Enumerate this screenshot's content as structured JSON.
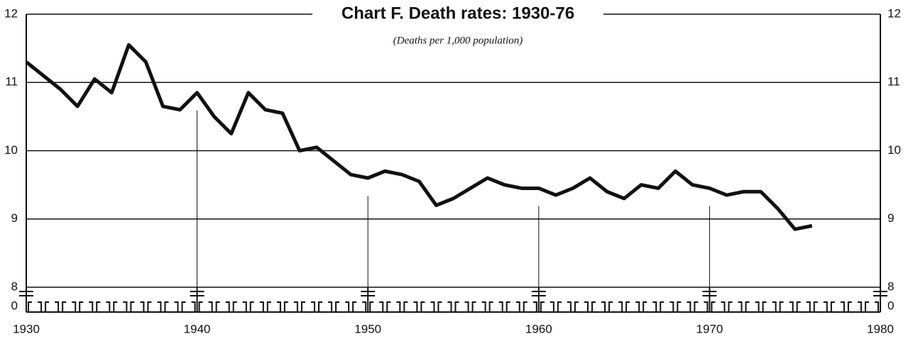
{
  "chart_data": {
    "type": "line",
    "title": "Chart F. Death rates: 1930-76",
    "subtitle": "(Deaths per 1,000 population)",
    "x": [
      1930,
      1931,
      1932,
      1933,
      1934,
      1935,
      1936,
      1937,
      1938,
      1939,
      1940,
      1941,
      1942,
      1943,
      1944,
      1945,
      1946,
      1947,
      1948,
      1949,
      1950,
      1951,
      1952,
      1953,
      1954,
      1955,
      1956,
      1957,
      1958,
      1959,
      1960,
      1961,
      1962,
      1963,
      1964,
      1965,
      1966,
      1967,
      1968,
      1969,
      1970,
      1971,
      1972,
      1973,
      1974,
      1975,
      1976
    ],
    "series": [
      {
        "name": "Death rate",
        "color": "#111111",
        "values": [
          11.3,
          11.1,
          10.9,
          10.65,
          11.05,
          10.85,
          11.55,
          11.3,
          10.65,
          10.6,
          10.85,
          10.5,
          10.25,
          10.85,
          10.6,
          10.55,
          10.0,
          10.05,
          9.85,
          9.65,
          9.6,
          9.7,
          9.65,
          9.55,
          9.2,
          9.3,
          9.45,
          9.6,
          9.5,
          9.45,
          9.45,
          9.35,
          9.45,
          9.6,
          9.4,
          9.3,
          9.5,
          9.45,
          9.7,
          9.5,
          9.45,
          9.35,
          9.4,
          9.4,
          9.15,
          8.85,
          8.9
        ]
      }
    ],
    "xlim": [
      1930,
      1980
    ],
    "xticks": [
      1930,
      1940,
      1950,
      1960,
      1970,
      1980
    ],
    "ylim": [
      8,
      12
    ],
    "yticks": [
      8,
      9,
      10,
      11,
      12
    ],
    "y_break_tick": 0,
    "grid": true
  }
}
